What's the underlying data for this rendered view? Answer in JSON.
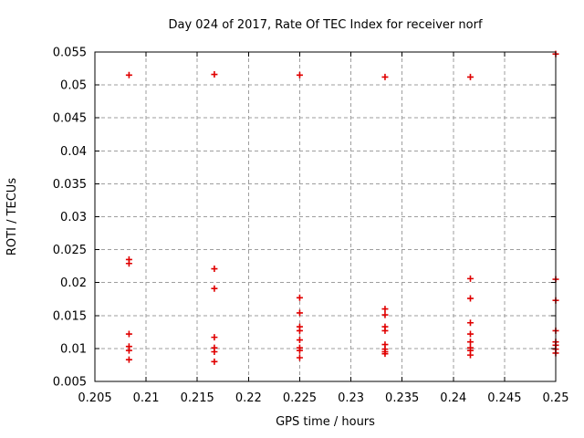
{
  "chart_data": {
    "type": "scatter",
    "title": "Day 024 of 2017, Rate Of TEC Index for receiver norf",
    "xlabel": "GPS time / hours",
    "ylabel": "ROTI / TECUs",
    "xlim": [
      0.205,
      0.25
    ],
    "ylim": [
      0.005,
      0.055
    ],
    "xticks": [
      0.205,
      0.21,
      0.215,
      0.22,
      0.225,
      0.23,
      0.235,
      0.24,
      0.245,
      0.25
    ],
    "xtick_labels": [
      "0.205",
      "0.21",
      "0.215",
      "0.22",
      "0.225",
      "0.23",
      "0.235",
      "0.24",
      "0.245",
      "0.25"
    ],
    "yticks": [
      0.005,
      0.01,
      0.015,
      0.02,
      0.025,
      0.03,
      0.035,
      0.04,
      0.045,
      0.05,
      0.055
    ],
    "ytick_labels": [
      "0.005",
      "0.01",
      "0.015",
      "0.02",
      "0.025",
      "0.03",
      "0.035",
      "0.04",
      "0.045",
      "0.05",
      "0.055"
    ],
    "grid": true,
    "legend": "none",
    "marker": "plus",
    "colors": {
      "marker": "#e00000",
      "grid": "#9e9e9e",
      "axis": "#000000",
      "text": "#000000",
      "background": "#ffffff"
    },
    "series": [
      {
        "name": "ROTI",
        "points": [
          [
            0.208333,
            0.0515
          ],
          [
            0.208333,
            0.0235
          ],
          [
            0.208333,
            0.0229
          ],
          [
            0.208333,
            0.0122
          ],
          [
            0.208333,
            0.0103
          ],
          [
            0.208333,
            0.0097
          ],
          [
            0.208333,
            0.0083
          ],
          [
            0.216667,
            0.0516
          ],
          [
            0.216667,
            0.0221
          ],
          [
            0.216667,
            0.0191
          ],
          [
            0.216667,
            0.0117
          ],
          [
            0.216667,
            0.0101
          ],
          [
            0.216667,
            0.0095
          ],
          [
            0.216667,
            0.008
          ],
          [
            0.225,
            0.0515
          ],
          [
            0.225,
            0.0177
          ],
          [
            0.225,
            0.0154
          ],
          [
            0.225,
            0.0133
          ],
          [
            0.225,
            0.0127
          ],
          [
            0.225,
            0.0113
          ],
          [
            0.225,
            0.0101
          ],
          [
            0.225,
            0.0097
          ],
          [
            0.225,
            0.0086
          ],
          [
            0.233333,
            0.0512
          ],
          [
            0.233333,
            0.016
          ],
          [
            0.233333,
            0.0151
          ],
          [
            0.233333,
            0.0133
          ],
          [
            0.233333,
            0.0127
          ],
          [
            0.233333,
            0.0106
          ],
          [
            0.233333,
            0.0099
          ],
          [
            0.233333,
            0.0095
          ],
          [
            0.233333,
            0.0092
          ],
          [
            0.241667,
            0.0512
          ],
          [
            0.241667,
            0.0206
          ],
          [
            0.241667,
            0.0176
          ],
          [
            0.241667,
            0.0139
          ],
          [
            0.241667,
            0.0122
          ],
          [
            0.241667,
            0.011
          ],
          [
            0.241667,
            0.0101
          ],
          [
            0.241667,
            0.0097
          ],
          [
            0.241667,
            0.009
          ],
          [
            0.25,
            0.0547
          ],
          [
            0.25,
            0.0205
          ],
          [
            0.25,
            0.0173
          ],
          [
            0.25,
            0.0127
          ],
          [
            0.25,
            0.011
          ],
          [
            0.25,
            0.0105
          ],
          [
            0.25,
            0.0099
          ],
          [
            0.25,
            0.0093
          ]
        ]
      }
    ]
  }
}
